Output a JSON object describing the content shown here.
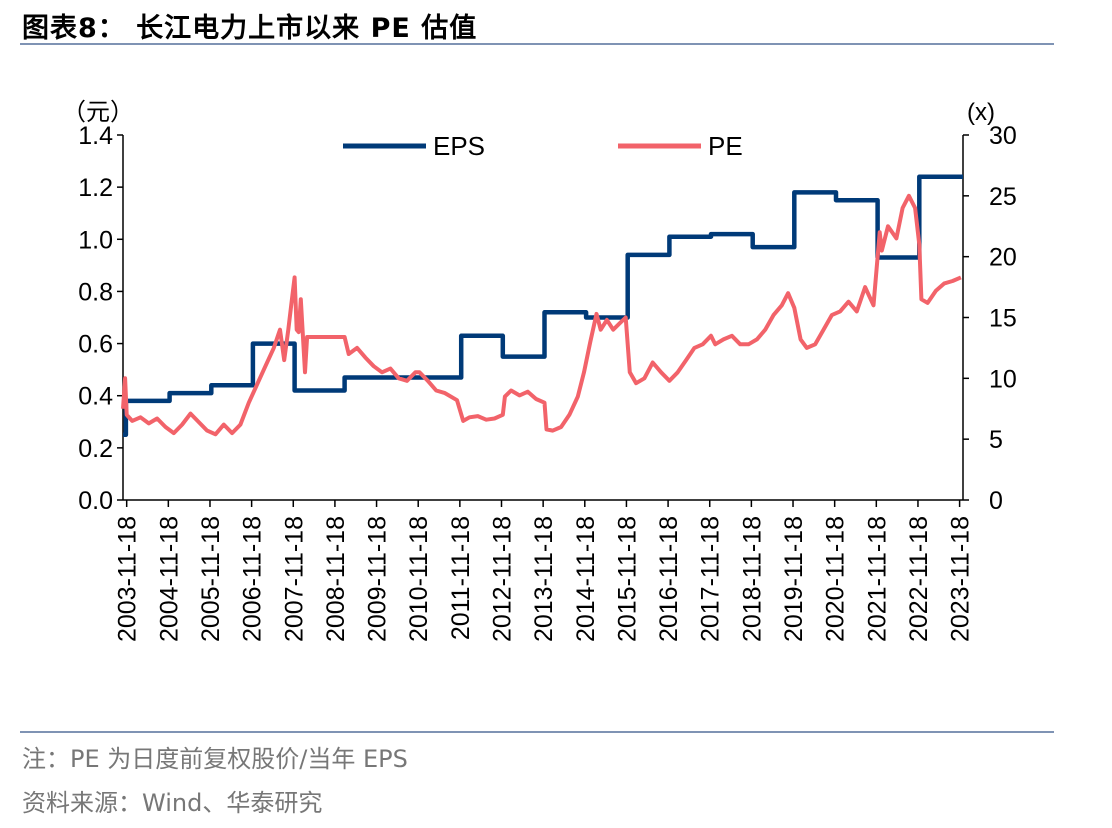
{
  "header": {
    "title": "图表8：  长江电力上市以来 PE 估值"
  },
  "footer": {
    "note": "注：PE 为日度前复权股价/当年 EPS",
    "source": "资料来源：Wind、华泰研究"
  },
  "colors": {
    "eps": "#003a78",
    "pe": "#f2636a",
    "rule": "#7f93b4",
    "note_text": "#777777"
  },
  "chart_data": {
    "type": "line",
    "x_axis": {
      "tick_labels": [
        "2003-11-18",
        "2004-11-18",
        "2005-11-18",
        "2006-11-18",
        "2007-11-18",
        "2008-11-18",
        "2009-11-18",
        "2010-11-18",
        "2011-11-18",
        "2012-11-18",
        "2013-11-18",
        "2014-11-18",
        "2015-11-18",
        "2016-11-18",
        "2017-11-18",
        "2018-11-18",
        "2019-11-18",
        "2020-11-18",
        "2021-11-18",
        "2022-11-18",
        "2023-11-18"
      ],
      "range": [
        2003.88,
        2024.05
      ]
    },
    "y_left": {
      "unit": "（元）",
      "range": [
        0,
        1.4
      ],
      "ticks": [
        "0.0",
        "0.2",
        "0.4",
        "0.6",
        "0.8",
        "1.0",
        "1.2",
        "1.4"
      ]
    },
    "y_right": {
      "unit": "(x)",
      "range": [
        0,
        30
      ],
      "ticks": [
        "0",
        "5",
        "10",
        "15",
        "20",
        "25",
        "30"
      ]
    },
    "legend": {
      "position": "top",
      "entries": [
        "EPS",
        "PE"
      ]
    },
    "grid": false,
    "series": [
      {
        "name": "EPS",
        "axis": "left",
        "step": true,
        "points": [
          [
            2003.88,
            0.25
          ],
          [
            2003.95,
            0.38
          ],
          [
            2005.0,
            0.41
          ],
          [
            2006.0,
            0.44
          ],
          [
            2007.0,
            0.6
          ],
          [
            2008.0,
            0.42
          ],
          [
            2009.2,
            0.47
          ],
          [
            2010.0,
            0.47
          ],
          [
            2011.0,
            0.47
          ],
          [
            2012.0,
            0.63
          ],
          [
            2013.0,
            0.55
          ],
          [
            2014.0,
            0.72
          ],
          [
            2015.0,
            0.7
          ],
          [
            2016.0,
            0.94
          ],
          [
            2017.0,
            1.01
          ],
          [
            2018.0,
            1.02
          ],
          [
            2019.0,
            0.97
          ],
          [
            2020.0,
            1.18
          ],
          [
            2021.0,
            1.15
          ],
          [
            2022.0,
            0.93
          ],
          [
            2023.0,
            1.24
          ],
          [
            2024.05,
            1.24
          ]
        ]
      },
      {
        "name": "PE",
        "axis": "right",
        "points": [
          [
            2003.88,
            7.5
          ],
          [
            2003.93,
            10.0
          ],
          [
            2003.97,
            7.0
          ],
          [
            2004.1,
            6.5
          ],
          [
            2004.3,
            6.8
          ],
          [
            2004.5,
            6.3
          ],
          [
            2004.7,
            6.7
          ],
          [
            2004.9,
            6.0
          ],
          [
            2005.1,
            5.5
          ],
          [
            2005.3,
            6.2
          ],
          [
            2005.5,
            7.1
          ],
          [
            2005.7,
            6.4
          ],
          [
            2005.9,
            5.7
          ],
          [
            2006.1,
            5.4
          ],
          [
            2006.3,
            6.2
          ],
          [
            2006.5,
            5.5
          ],
          [
            2006.7,
            6.2
          ],
          [
            2006.9,
            8.0
          ],
          [
            2007.1,
            9.5
          ],
          [
            2007.3,
            11.0
          ],
          [
            2007.5,
            12.5
          ],
          [
            2007.65,
            14.0
          ],
          [
            2007.75,
            11.5
          ],
          [
            2007.85,
            14.0
          ],
          [
            2007.92,
            16.0
          ],
          [
            2008.0,
            18.3
          ],
          [
            2008.05,
            14.0
          ],
          [
            2008.1,
            13.8
          ],
          [
            2008.15,
            16.5
          ],
          [
            2008.2,
            13.5
          ],
          [
            2008.25,
            10.5
          ],
          [
            2008.3,
            13.4
          ],
          [
            2009.2,
            13.4
          ],
          [
            2009.3,
            12.0
          ],
          [
            2009.5,
            12.5
          ],
          [
            2009.7,
            11.7
          ],
          [
            2009.9,
            11.0
          ],
          [
            2010.1,
            10.5
          ],
          [
            2010.3,
            10.8
          ],
          [
            2010.5,
            10.0
          ],
          [
            2010.7,
            9.8
          ],
          [
            2010.9,
            10.5
          ],
          [
            2011.0,
            10.5
          ],
          [
            2011.2,
            9.8
          ],
          [
            2011.4,
            9.0
          ],
          [
            2011.6,
            8.8
          ],
          [
            2011.9,
            8.2
          ],
          [
            2012.05,
            6.5
          ],
          [
            2012.2,
            6.8
          ],
          [
            2012.4,
            6.9
          ],
          [
            2012.6,
            6.6
          ],
          [
            2012.8,
            6.7
          ],
          [
            2013.0,
            7.0
          ],
          [
            2013.05,
            8.5
          ],
          [
            2013.2,
            9.0
          ],
          [
            2013.4,
            8.6
          ],
          [
            2013.6,
            8.9
          ],
          [
            2013.8,
            8.3
          ],
          [
            2014.0,
            8.0
          ],
          [
            2014.05,
            5.8
          ],
          [
            2014.2,
            5.7
          ],
          [
            2014.4,
            6.0
          ],
          [
            2014.6,
            7.0
          ],
          [
            2014.8,
            8.5
          ],
          [
            2014.95,
            10.5
          ],
          [
            2015.1,
            13.0
          ],
          [
            2015.25,
            15.3
          ],
          [
            2015.35,
            14.0
          ],
          [
            2015.5,
            14.8
          ],
          [
            2015.65,
            14.0
          ],
          [
            2015.8,
            14.5
          ],
          [
            2015.95,
            15.0
          ],
          [
            2016.05,
            10.5
          ],
          [
            2016.2,
            9.6
          ],
          [
            2016.4,
            10.0
          ],
          [
            2016.6,
            11.3
          ],
          [
            2016.8,
            10.5
          ],
          [
            2017.0,
            9.8
          ],
          [
            2017.2,
            10.5
          ],
          [
            2017.4,
            11.5
          ],
          [
            2017.6,
            12.5
          ],
          [
            2017.8,
            12.8
          ],
          [
            2018.0,
            13.5
          ],
          [
            2018.1,
            12.8
          ],
          [
            2018.3,
            13.2
          ],
          [
            2018.5,
            13.5
          ],
          [
            2018.7,
            12.8
          ],
          [
            2018.9,
            12.8
          ],
          [
            2019.1,
            13.2
          ],
          [
            2019.3,
            14.0
          ],
          [
            2019.5,
            15.2
          ],
          [
            2019.7,
            16.0
          ],
          [
            2019.85,
            17.0
          ],
          [
            2020.0,
            15.8
          ],
          [
            2020.15,
            13.2
          ],
          [
            2020.3,
            12.5
          ],
          [
            2020.5,
            12.8
          ],
          [
            2020.7,
            14.0
          ],
          [
            2020.9,
            15.2
          ],
          [
            2021.1,
            15.5
          ],
          [
            2021.3,
            16.3
          ],
          [
            2021.5,
            15.5
          ],
          [
            2021.7,
            17.5
          ],
          [
            2021.9,
            16.0
          ],
          [
            2022.05,
            22.0
          ],
          [
            2022.1,
            20.5
          ],
          [
            2022.25,
            22.5
          ],
          [
            2022.45,
            21.5
          ],
          [
            2022.6,
            24.0
          ],
          [
            2022.75,
            25.0
          ],
          [
            2022.9,
            24.0
          ],
          [
            2023.0,
            21.0
          ],
          [
            2023.05,
            16.5
          ],
          [
            2023.2,
            16.2
          ],
          [
            2023.4,
            17.2
          ],
          [
            2023.6,
            17.8
          ],
          [
            2023.8,
            18.0
          ],
          [
            2024.0,
            18.3
          ]
        ]
      }
    ]
  }
}
